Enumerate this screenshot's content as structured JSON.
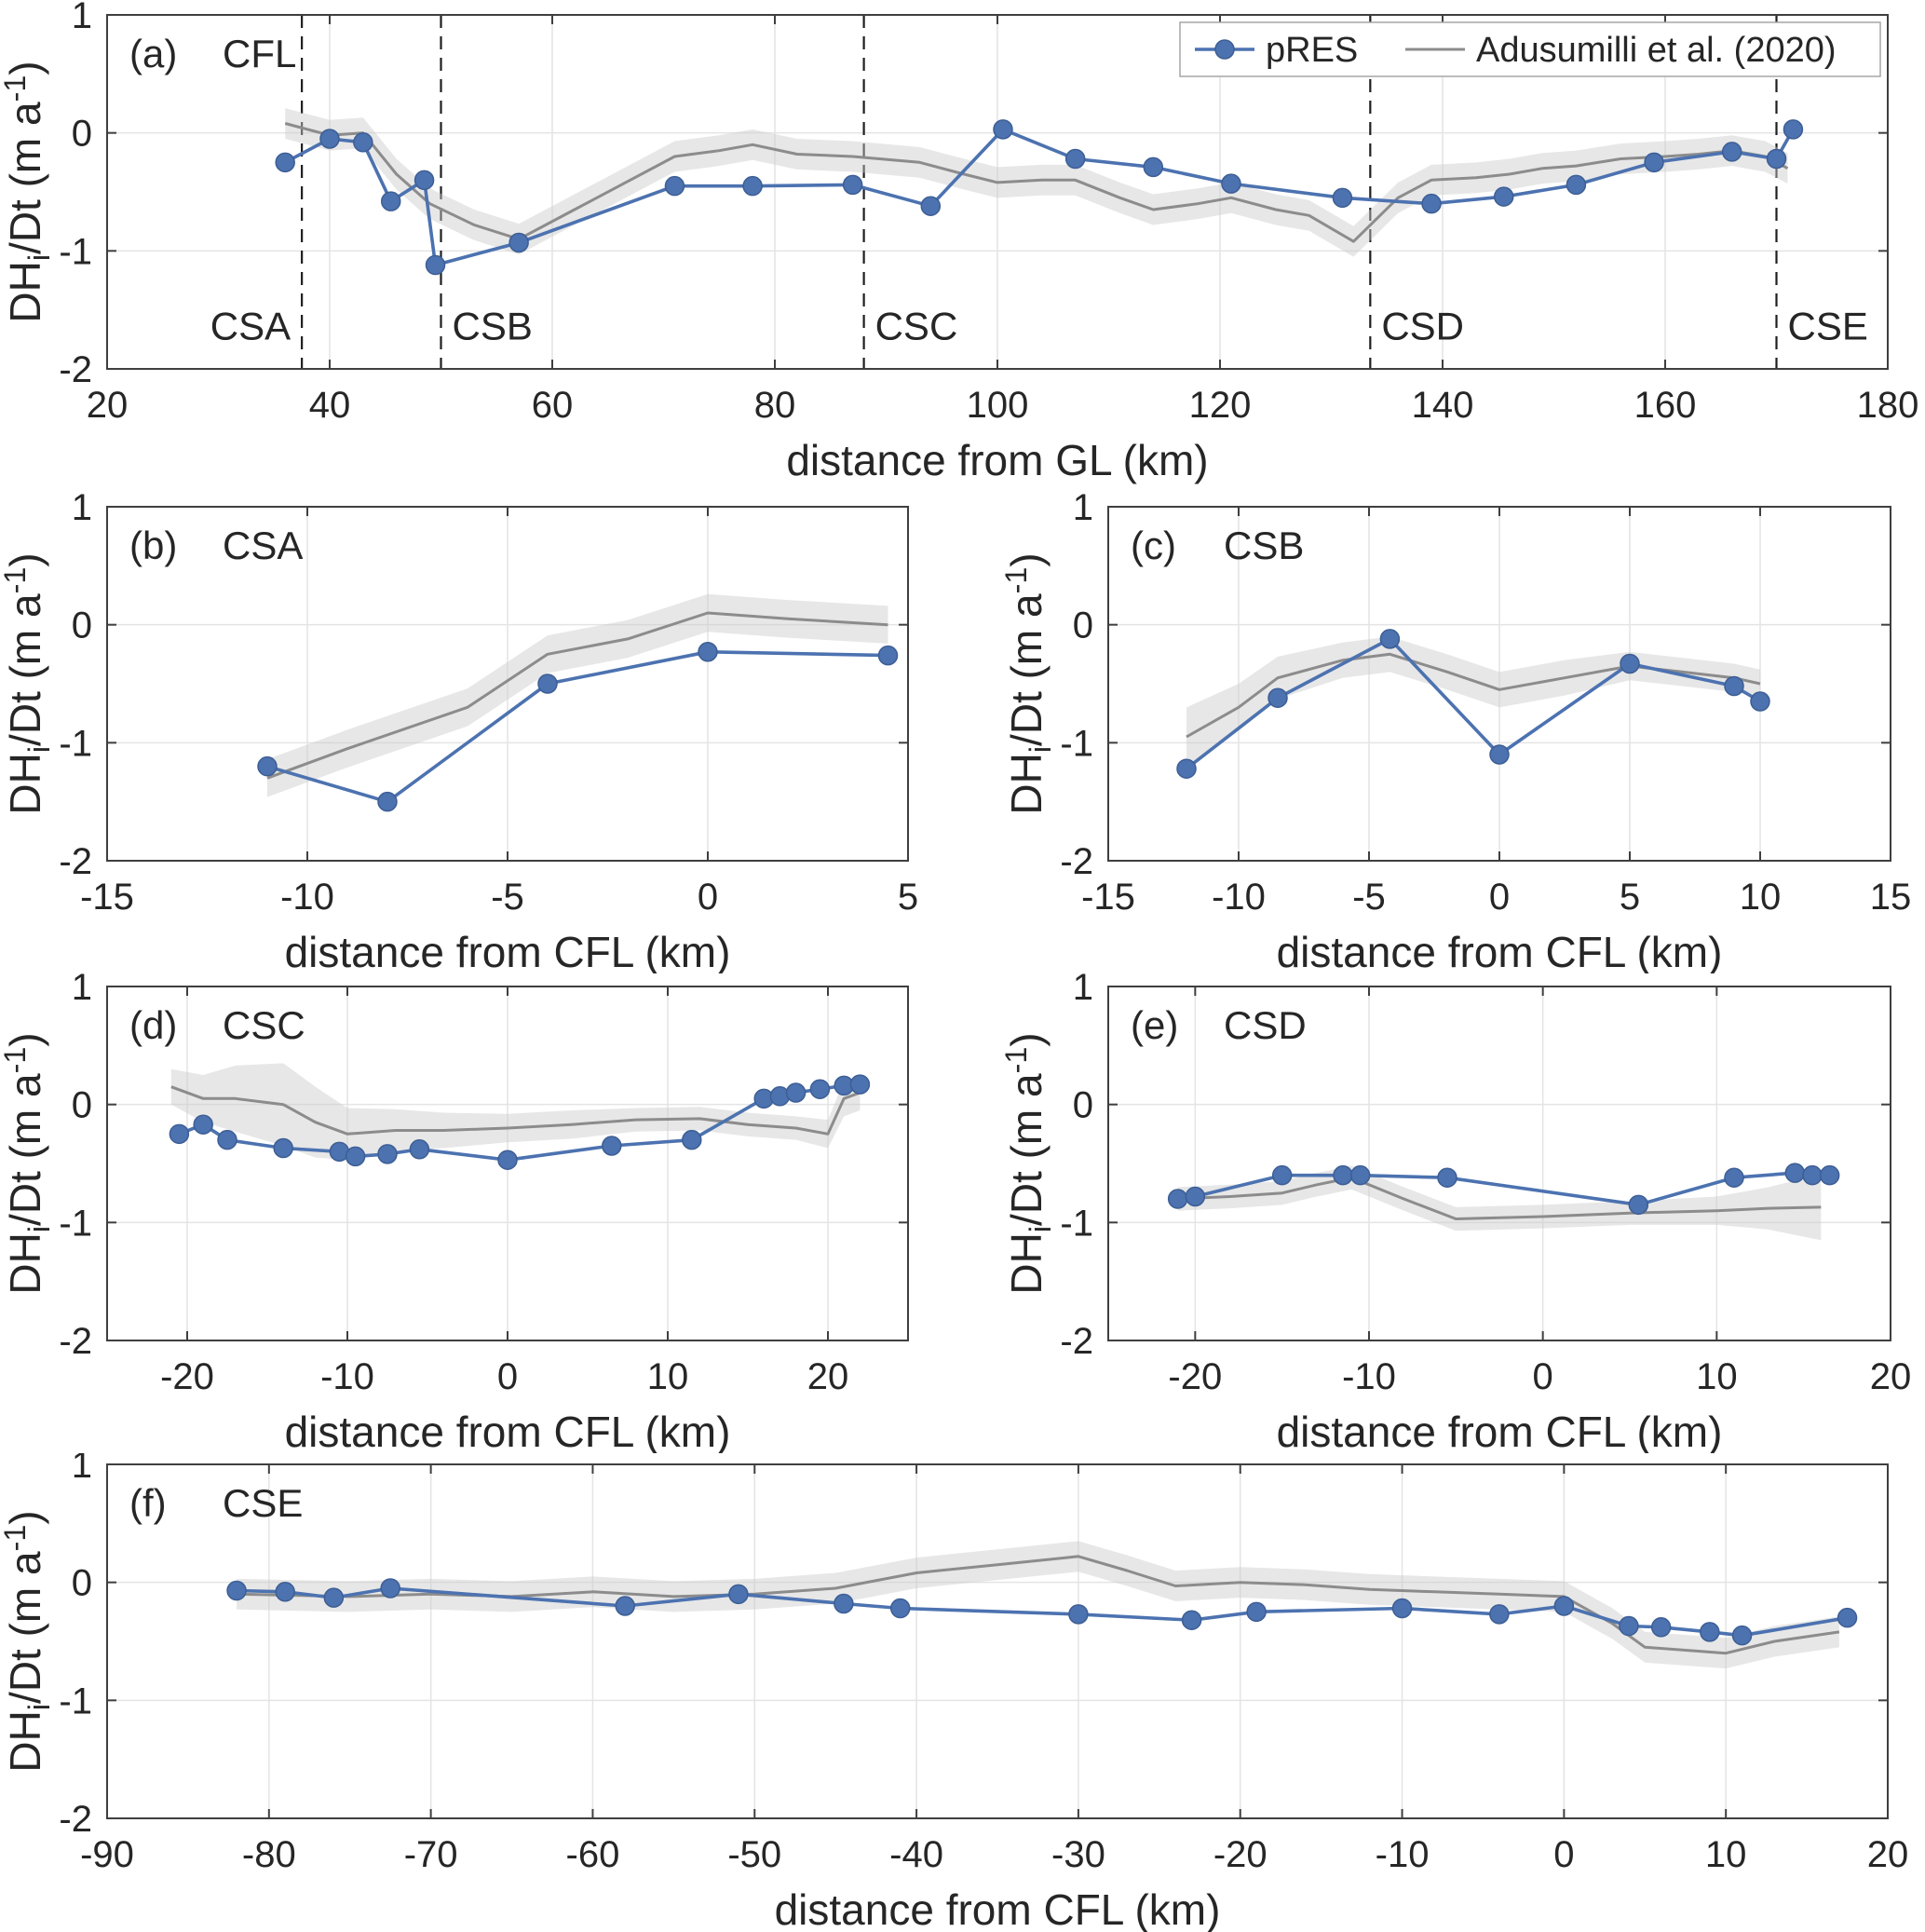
{
  "figure": {
    "ylabel": "DH_{i}/Dt (m a^{-1})",
    "colors": {
      "pres": "#4C72B0",
      "pres_edge": "#3D5E94",
      "adusumilli": "#8C8C8C",
      "band": "#C9C9C9",
      "grid": "#E4E4E4",
      "frame": "#3F3F3F",
      "text": "#262626",
      "dashed": "#1F1F1F"
    },
    "legend": {
      "entries": [
        {
          "key": "pres",
          "label": "pRES",
          "marker": true
        },
        {
          "key": "adusumilli",
          "label": "Adusumilli et al. (2020)",
          "marker": false
        }
      ]
    }
  },
  "chart_data": [
    {
      "id": "a",
      "type": "line",
      "panel_tag": "(a)",
      "title": "CFL",
      "xlabel": "distance from GL (km)",
      "ylabel": "DH_{i}/Dt (m a^{-1})",
      "xlim": [
        20,
        180
      ],
      "ylim": [
        -2,
        1
      ],
      "xticks": [
        20,
        40,
        60,
        80,
        100,
        120,
        140,
        160,
        180
      ],
      "yticks": [
        -2,
        -1,
        0,
        1
      ],
      "show_legend": true,
      "vlines": [
        {
          "x": 37.5,
          "label": "CSA",
          "label_side": "left"
        },
        {
          "x": 50,
          "label": "CSB",
          "label_side": "right"
        },
        {
          "x": 88,
          "label": "CSC",
          "label_side": "right"
        },
        {
          "x": 133.5,
          "label": "CSD",
          "label_side": "right"
        },
        {
          "x": 170,
          "label": "CSE",
          "label_side": "right"
        }
      ],
      "series": [
        {
          "name": "Adusumilli et al. (2020)",
          "key": "adusumilli",
          "x": [
            36,
            40,
            43,
            46,
            49,
            53,
            57,
            62,
            66,
            71,
            75,
            78,
            82,
            87,
            93,
            97,
            100,
            104,
            107,
            111,
            114,
            118,
            121,
            125,
            128,
            132,
            136,
            139,
            143,
            146,
            149,
            152,
            156,
            160,
            163,
            166,
            169,
            171
          ],
          "y": [
            0.08,
            -0.02,
            0.0,
            -0.35,
            -0.6,
            -0.78,
            -0.9,
            -0.65,
            -0.45,
            -0.2,
            -0.15,
            -0.1,
            -0.18,
            -0.2,
            -0.25,
            -0.35,
            -0.42,
            -0.4,
            -0.4,
            -0.55,
            -0.65,
            -0.6,
            -0.55,
            -0.65,
            -0.7,
            -0.92,
            -0.55,
            -0.4,
            -0.38,
            -0.35,
            -0.3,
            -0.28,
            -0.22,
            -0.2,
            -0.18,
            -0.15,
            -0.2,
            -0.3
          ],
          "band": 0.13
        },
        {
          "name": "pRES",
          "key": "pres",
          "marker": true,
          "x": [
            36,
            40,
            43,
            45.5,
            48.5,
            49.5,
            57,
            71,
            78,
            87,
            94,
            100.5,
            107,
            114,
            121,
            131,
            139,
            145.5,
            152,
            159,
            166,
            170,
            171.5
          ],
          "y": [
            -0.25,
            -0.05,
            -0.08,
            -0.58,
            -0.4,
            -1.12,
            -0.93,
            -0.45,
            -0.45,
            -0.44,
            -0.62,
            0.03,
            -0.22,
            -0.29,
            -0.43,
            -0.55,
            -0.6,
            -0.54,
            -0.44,
            -0.25,
            -0.16,
            -0.22,
            0.03
          ]
        }
      ]
    },
    {
      "id": "b",
      "type": "line",
      "panel_tag": "(b)",
      "title": "CSA",
      "xlabel": "distance from CFL (km)",
      "ylabel": "DH_{i}/Dt (m a^{-1})",
      "xlim": [
        -15,
        5
      ],
      "ylim": [
        -2,
        1
      ],
      "xticks": [
        -15,
        -10,
        -5,
        0,
        5
      ],
      "yticks": [
        -2,
        -1,
        0,
        1
      ],
      "show_legend": false,
      "series": [
        {
          "name": "Adusumilli et al. (2020)",
          "key": "adusumilli",
          "x": [
            -11,
            -9,
            -6,
            -4,
            -2,
            0,
            2,
            4.5
          ],
          "y": [
            -1.3,
            -1.05,
            -0.7,
            -0.25,
            -0.12,
            0.1,
            0.05,
            0.0
          ],
          "band": 0.16
        },
        {
          "name": "pRES",
          "key": "pres",
          "marker": true,
          "x": [
            -11,
            -8,
            -4,
            0,
            4.5
          ],
          "y": [
            -1.2,
            -1.5,
            -0.5,
            -0.23,
            -0.26
          ]
        }
      ]
    },
    {
      "id": "c",
      "type": "line",
      "panel_tag": "(c)",
      "title": "CSB",
      "xlabel": "distance from CFL (km)",
      "ylabel": "DH_{i}/Dt (m a^{-1})",
      "xlim": [
        -15,
        15
      ],
      "ylim": [
        -2,
        1
      ],
      "xticks": [
        -15,
        -10,
        -5,
        0,
        5,
        10,
        15
      ],
      "yticks": [
        -2,
        -1,
        0,
        1
      ],
      "show_legend": false,
      "series": [
        {
          "name": "Adusumilli et al. (2020)",
          "key": "adusumilli",
          "x": [
            -12,
            -10,
            -8.5,
            -6,
            -4.2,
            -2,
            0,
            2.5,
            5,
            7,
            9,
            10
          ],
          "y": [
            -0.95,
            -0.7,
            -0.45,
            -0.3,
            -0.25,
            -0.4,
            -0.55,
            -0.45,
            -0.35,
            -0.4,
            -0.45,
            -0.5
          ],
          "band": [
            0.25,
            0.2,
            0.18,
            0.15,
            0.15,
            0.15,
            0.15,
            0.15,
            0.12,
            0.12,
            0.12,
            0.12
          ]
        },
        {
          "name": "pRES",
          "key": "pres",
          "marker": true,
          "x": [
            -12,
            -8.5,
            -4.2,
            0,
            5,
            9,
            10
          ],
          "y": [
            -1.22,
            -0.62,
            -0.12,
            -1.1,
            -0.33,
            -0.52,
            -0.65
          ]
        }
      ]
    },
    {
      "id": "d",
      "type": "line",
      "panel_tag": "(d)",
      "title": "CSC",
      "xlabel": "distance from CFL (km)",
      "ylabel": "DH_{i}/Dt (m a^{-1})",
      "xlim": [
        -25,
        25
      ],
      "ylim": [
        -2,
        1
      ],
      "xticks": [
        -20,
        -10,
        0,
        10,
        20
      ],
      "yticks": [
        -2,
        -1,
        0,
        1
      ],
      "show_legend": false,
      "series": [
        {
          "name": "Adusumilli et al. (2020)",
          "key": "adusumilli",
          "x": [
            -21,
            -19,
            -17,
            -14,
            -12,
            -10,
            -7,
            -4,
            0,
            4,
            8,
            12,
            15,
            18,
            20,
            21,
            22
          ],
          "y": [
            0.15,
            0.05,
            0.05,
            0.0,
            -0.15,
            -0.25,
            -0.22,
            -0.22,
            -0.2,
            -0.17,
            -0.13,
            -0.12,
            -0.17,
            -0.2,
            -0.25,
            0.05,
            0.1
          ],
          "band": [
            0.15,
            0.2,
            0.28,
            0.35,
            0.3,
            0.22,
            0.18,
            0.15,
            0.12,
            0.12,
            0.1,
            0.1,
            0.1,
            0.1,
            0.12,
            0.15,
            0.15
          ]
        },
        {
          "name": "pRES",
          "key": "pres",
          "marker": true,
          "x": [
            -20.5,
            -19,
            -17.5,
            -14,
            -10.5,
            -9.5,
            -7.5,
            -5.5,
            0,
            6.5,
            11.5,
            16,
            17,
            18,
            19.5,
            21,
            22
          ],
          "y": [
            -0.25,
            -0.17,
            -0.3,
            -0.37,
            -0.4,
            -0.44,
            -0.42,
            -0.38,
            -0.47,
            -0.35,
            -0.3,
            0.05,
            0.07,
            0.1,
            0.13,
            0.16,
            0.17
          ]
        }
      ]
    },
    {
      "id": "e",
      "type": "line",
      "panel_tag": "(e)",
      "title": "CSD",
      "xlabel": "distance from CFL (km)",
      "ylabel": "DH_{i}/Dt (m a^{-1})",
      "xlim": [
        -25,
        20
      ],
      "ylim": [
        -2,
        1
      ],
      "xticks": [
        -20,
        -10,
        0,
        10,
        20
      ],
      "yticks": [
        -2,
        -1,
        0,
        1
      ],
      "show_legend": false,
      "series": [
        {
          "name": "Adusumilli et al. (2020)",
          "key": "adusumilli",
          "x": [
            -21,
            -18,
            -15,
            -13,
            -11,
            -8,
            -5,
            0,
            5,
            10,
            13,
            16
          ],
          "y": [
            -0.8,
            -0.78,
            -0.75,
            -0.68,
            -0.62,
            -0.8,
            -0.97,
            -0.95,
            -0.92,
            -0.9,
            -0.88,
            -0.87
          ],
          "band": [
            0.1,
            0.1,
            0.1,
            0.1,
            0.1,
            0.1,
            0.1,
            0.1,
            0.1,
            0.12,
            0.18,
            0.28
          ]
        },
        {
          "name": "pRES",
          "key": "pres",
          "marker": true,
          "x": [
            -21,
            -20,
            -15,
            -11.5,
            -10.5,
            -5.5,
            5.5,
            11,
            14.5,
            15.5,
            16.5
          ],
          "y": [
            -0.8,
            -0.78,
            -0.6,
            -0.6,
            -0.6,
            -0.62,
            -0.85,
            -0.62,
            -0.58,
            -0.6,
            -0.6
          ]
        }
      ]
    },
    {
      "id": "f",
      "type": "line",
      "panel_tag": "(f)",
      "title": "CSE",
      "xlabel": "distance from CFL (km)",
      "ylabel": "DH_{i}/Dt (m a^{-1})",
      "xlim": [
        -90,
        20
      ],
      "ylim": [
        -2,
        1
      ],
      "xticks": [
        -90,
        -80,
        -70,
        -60,
        -50,
        -40,
        -30,
        -20,
        -10,
        0,
        10,
        20
      ],
      "yticks": [
        -2,
        -1,
        0,
        1
      ],
      "show_legend": false,
      "series": [
        {
          "name": "Adusumilli et al. (2020)",
          "key": "adusumilli",
          "x": [
            -82,
            -75,
            -70,
            -65,
            -60,
            -55,
            -50,
            -45,
            -40,
            -35,
            -30,
            -27,
            -24,
            -20,
            -16,
            -12,
            -8,
            -4,
            0,
            3,
            5,
            8,
            10,
            13,
            17
          ],
          "y": [
            -0.1,
            -0.12,
            -0.1,
            -0.12,
            -0.08,
            -0.12,
            -0.1,
            -0.05,
            0.08,
            0.15,
            0.22,
            0.1,
            -0.03,
            0.0,
            -0.02,
            -0.06,
            -0.08,
            -0.1,
            -0.12,
            -0.35,
            -0.55,
            -0.58,
            -0.6,
            -0.5,
            -0.42
          ],
          "band": 0.13
        },
        {
          "name": "pRES",
          "key": "pres",
          "marker": true,
          "x": [
            -82,
            -79,
            -76,
            -72.5,
            -58,
            -51,
            -44.5,
            -41,
            -30,
            -23,
            -19,
            -10,
            -4,
            0,
            4,
            6,
            9,
            11,
            17.5
          ],
          "y": [
            -0.07,
            -0.08,
            -0.13,
            -0.05,
            -0.2,
            -0.1,
            -0.18,
            -0.22,
            -0.27,
            -0.32,
            -0.25,
            -0.22,
            -0.27,
            -0.2,
            -0.37,
            -0.38,
            -0.42,
            -0.45,
            -0.3
          ]
        }
      ]
    }
  ]
}
